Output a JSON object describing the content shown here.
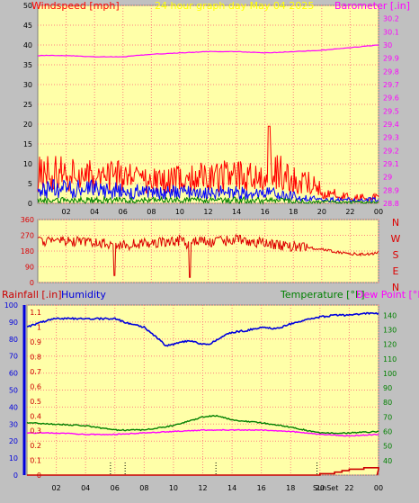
{
  "colors": {
    "frame": "#c0c0c0",
    "plot_bg": "#ffffa8",
    "grid": "#ff8080",
    "wind_avg": "#ff0000",
    "wind_gust": "#0000ff",
    "wind_low": "#008000",
    "barometer": "#ff00ff",
    "direction": "#dd0000",
    "rainfall": "#cc0000",
    "humidity": "#0000dd",
    "temperature": "#008000",
    "dew_point": "#ff00ff",
    "title": "#ffff00"
  },
  "chart_data": [
    {
      "type": "line",
      "title": "24 hour graph day   May 04 2025",
      "ylabel_left": "Windspeed [mph]",
      "ylabel_right": "Barometer [.in]",
      "x_ticks": [
        "02",
        "04",
        "06",
        "08",
        "10",
        "12",
        "14",
        "16",
        "18",
        "20",
        "22",
        "00"
      ],
      "ylim_left": [
        0,
        50
      ],
      "yticks_left": [
        "0",
        "5",
        "10",
        "15",
        "20",
        "25",
        "30",
        "35",
        "40",
        "45",
        "50"
      ],
      "ylim_right": [
        28.8,
        30.3
      ],
      "yticks_right": [
        "28.8",
        "28.9",
        "29",
        "29.1",
        "29.2",
        "29.3",
        "29.4",
        "29.5",
        "29.6",
        "29.7",
        "29.8",
        "29.9",
        "30",
        "30.1",
        "30.2"
      ],
      "grid": true,
      "series": [
        {
          "axis": "right",
          "hours": [
            0,
            2,
            4,
            6,
            8,
            10,
            12,
            14,
            16,
            18,
            20,
            22,
            24
          ],
          "values": [
            29.92,
            29.92,
            29.91,
            29.91,
            29.93,
            29.94,
            29.95,
            29.95,
            29.94,
            29.95,
            29.96,
            29.98,
            30.0
          ]
        },
        {
          "axis": "left",
          "hours": [
            0,
            2,
            4,
            6,
            8,
            10,
            12,
            14,
            16,
            16.3,
            18,
            19.5,
            20,
            22,
            24
          ],
          "values": [
            10,
            10,
            9,
            9,
            8,
            8,
            9,
            9,
            9,
            12,
            8,
            7,
            4,
            2,
            2
          ]
        },
        {
          "axis": "left",
          "hours": [
            0,
            4,
            8,
            12,
            16,
            20,
            24
          ],
          "values": [
            4,
            4,
            3,
            3,
            3,
            1,
            1
          ]
        },
        {
          "axis": "left",
          "hours": [
            0,
            4,
            8,
            12,
            16,
            20,
            24
          ],
          "values": [
            1,
            1,
            1,
            1,
            1,
            0.5,
            0.3
          ]
        }
      ]
    },
    {
      "type": "line",
      "ylim": [
        0,
        360
      ],
      "yticks": [
        "0",
        "90",
        "180",
        "270",
        "360"
      ],
      "compass_labels": [
        "N",
        "W",
        "S",
        "E",
        "N"
      ],
      "grid": true,
      "series": [
        {
          "hours": [
            0,
            2,
            4,
            5.5,
            6,
            8,
            10,
            10.7,
            11,
            12,
            14,
            16,
            18,
            19,
            20,
            21,
            22,
            23,
            24
          ],
          "values": [
            240,
            235,
            230,
            215,
            215,
            225,
            240,
            210,
            240,
            230,
            245,
            225,
            205,
            200,
            190,
            175,
            165,
            160,
            170
          ]
        }
      ]
    },
    {
      "type": "line",
      "ylabel_left_rain": "Rainfall [.in]",
      "ylabel_left_hum": "Humidity",
      "ylabel_right": "Temperature [°F]",
      "ylabel_right2": "Dew Point [°F]",
      "x_ticks": [
        "02",
        "04",
        "06",
        "08",
        "10",
        "12",
        "14",
        "16",
        "18",
        "20",
        "22",
        "00"
      ],
      "ylim_hum": [
        0,
        100
      ],
      "yticks_hum": [
        "0",
        "10",
        "20",
        "30",
        "40",
        "50",
        "60",
        "70",
        "80",
        "90",
        "100"
      ],
      "ylim_rain": [
        0,
        1.15
      ],
      "yticks_rain": [
        "0",
        "0.1",
        "0.2",
        "0.3",
        "0.4",
        "0.5",
        "0.6",
        "0.7",
        "0.8",
        "0.9",
        "1",
        "1.1"
      ],
      "ylim_temp": [
        30,
        147
      ],
      "yticks_temp": [
        "40",
        "50",
        "60",
        "70",
        "80",
        "90",
        "100",
        "110",
        "120",
        "130",
        "140"
      ],
      "sun_label": "SunSet",
      "grid": true,
      "series": [
        {
          "axis": "hum",
          "hours": [
            0,
            1,
            2,
            4,
            6,
            7,
            8,
            9,
            9.5,
            10,
            11,
            12,
            12.5,
            13,
            14,
            15,
            16,
            17,
            18,
            19,
            20,
            21,
            22,
            23,
            24
          ],
          "values": [
            87,
            90,
            92,
            92,
            92,
            89,
            87,
            80,
            76,
            77,
            79,
            77,
            77,
            80,
            84,
            85,
            87,
            86,
            89,
            91,
            93,
            94,
            94,
            95,
            95
          ]
        },
        {
          "axis": "temp",
          "hours": [
            0,
            2,
            4,
            6,
            8,
            10,
            12,
            13,
            14,
            16,
            18,
            20,
            22,
            24
          ],
          "values": [
            66,
            65,
            64,
            61,
            61,
            64,
            70,
            71,
            68,
            66,
            63,
            59,
            59,
            60
          ]
        },
        {
          "axis": "temp",
          "hours": [
            0,
            2,
            4,
            6,
            8,
            10,
            12,
            14,
            16,
            18,
            20,
            22,
            24
          ],
          "values": [
            59,
            59,
            58,
            58,
            59,
            60,
            61,
            61,
            61,
            60,
            58,
            57,
            58
          ]
        },
        {
          "axis": "rain",
          "hours": [
            0,
            19.8,
            20,
            21,
            21.5,
            22,
            22.5,
            23,
            23.5,
            24
          ],
          "values": [
            0,
            0,
            0.01,
            0.02,
            0.03,
            0.04,
            0.04,
            0.05,
            0.05,
            0.04
          ]
        }
      ]
    }
  ]
}
